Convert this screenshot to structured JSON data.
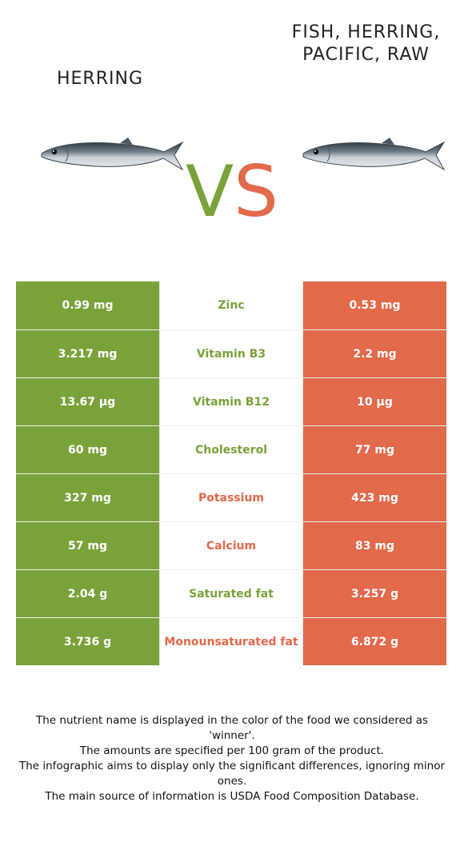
{
  "left_food": {
    "name": "Herring",
    "color": "#7aa23a"
  },
  "right_food": {
    "name": "Fish, herring, Pacific, raw",
    "color": "#e2694a"
  },
  "vs": {
    "v": "V",
    "s": "S"
  },
  "rows": [
    {
      "nutrient": "Zinc",
      "left": "0.99 mg",
      "right": "0.53 mg",
      "winner": "left"
    },
    {
      "nutrient": "Vitamin B3",
      "left": "3.217 mg",
      "right": "2.2 mg",
      "winner": "left"
    },
    {
      "nutrient": "Vitamin B12",
      "left": "13.67 µg",
      "right": "10 µg",
      "winner": "left"
    },
    {
      "nutrient": "Cholesterol",
      "left": "60 mg",
      "right": "77 mg",
      "winner": "left"
    },
    {
      "nutrient": "Potassium",
      "left": "327 mg",
      "right": "423 mg",
      "winner": "right"
    },
    {
      "nutrient": "Calcium",
      "left": "57 mg",
      "right": "83 mg",
      "winner": "right"
    },
    {
      "nutrient": "Saturated fat",
      "left": "2.04 g",
      "right": "3.257 g",
      "winner": "left"
    },
    {
      "nutrient": "Monounsaturated fat",
      "left": "3.736 g",
      "right": "6.872 g",
      "winner": "right"
    }
  ],
  "footer": [
    "The nutrient name is displayed in the color of the food we considered as 'winner'.",
    "The amounts are specified per 100 gram of the product.",
    "The infographic aims to display only the significant differences, ignoring minor ones.",
    "The main source of information is USDA Food Composition Database."
  ]
}
